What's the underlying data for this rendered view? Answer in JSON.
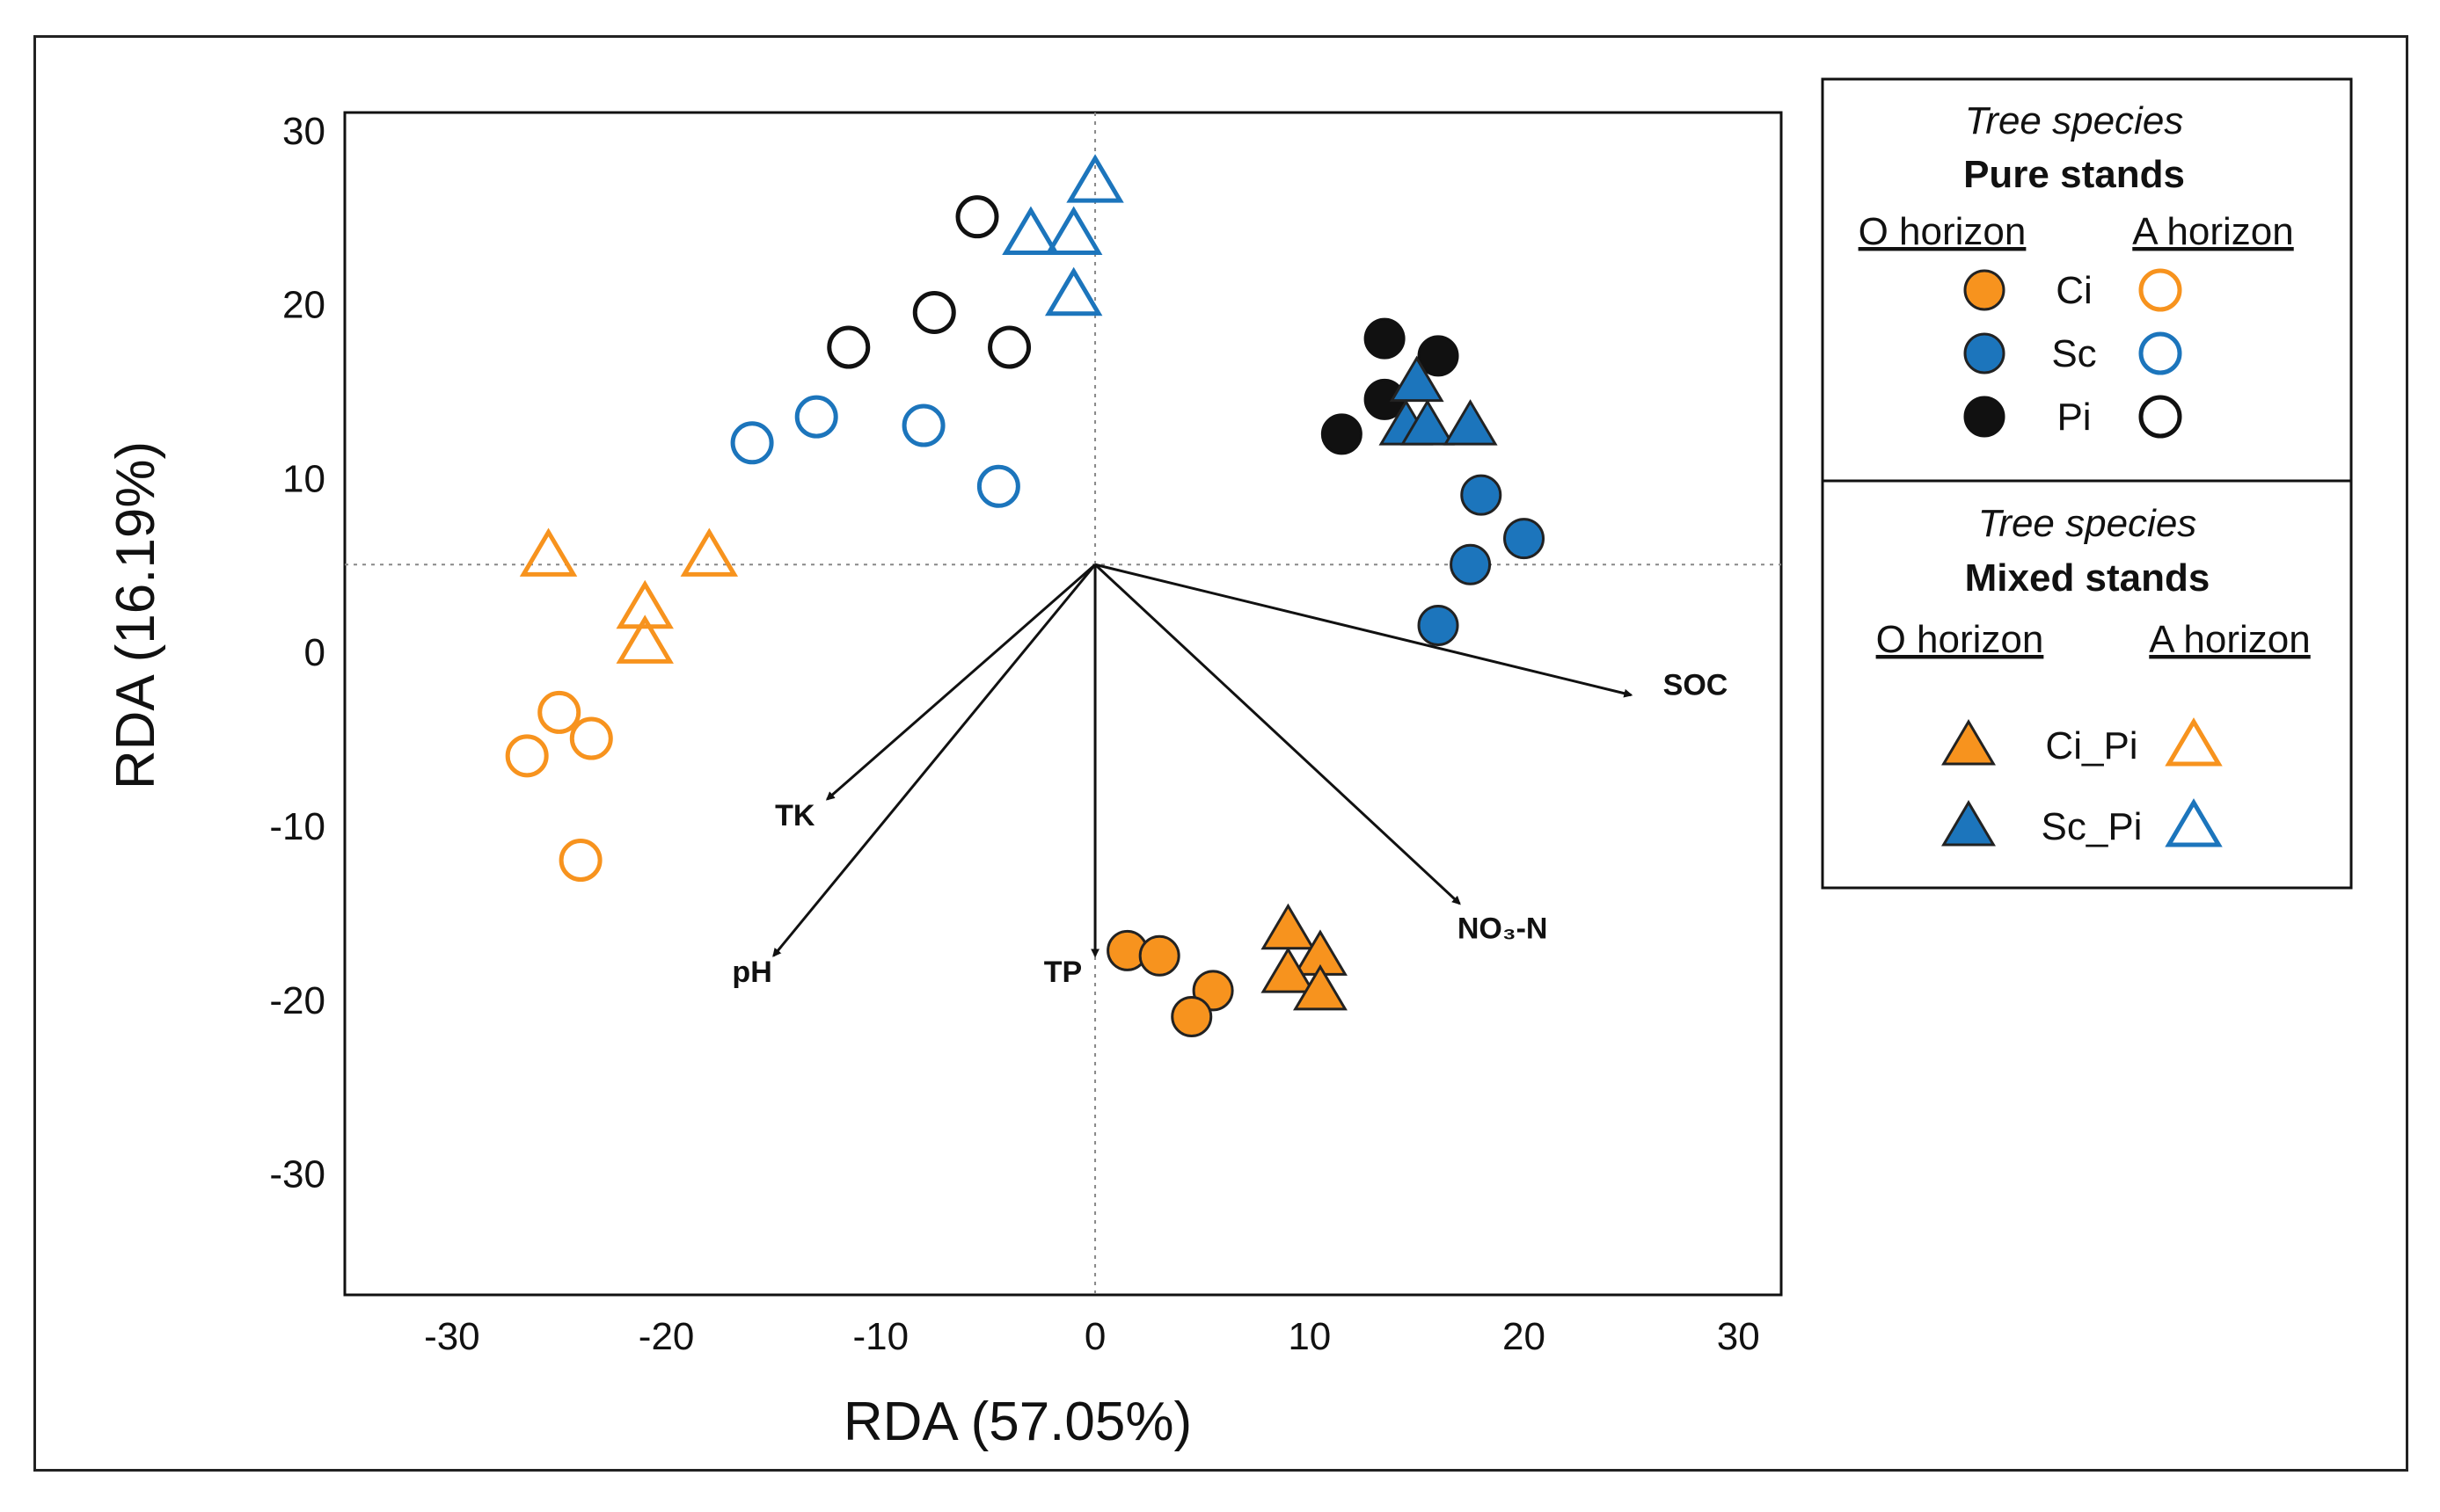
{
  "chart_data": {
    "type": "scatter",
    "xlabel": "RDA (57.05%)",
    "ylabel": "RDA (16.19%)",
    "xlim": [
      -35,
      32
    ],
    "ylim": [
      -37,
      31
    ],
    "x_ticks": [
      -30,
      -20,
      -10,
      0,
      10,
      20,
      30
    ],
    "y_ticks": [
      30,
      20,
      10,
      0,
      -10,
      -20,
      -30
    ],
    "reference_lines": {
      "x": 0,
      "y": 5
    },
    "series": [
      {
        "name": "Ci (O horizon)",
        "stand": "Pure",
        "shape": "circle",
        "fill": "#F7931E",
        "stroke": "#222222",
        "points": [
          [
            1.5,
            -17.2
          ],
          [
            3,
            -17.5
          ],
          [
            5.5,
            -19.5
          ],
          [
            4.5,
            -21
          ]
        ]
      },
      {
        "name": "Ci (A horizon)",
        "stand": "Pure",
        "shape": "circle",
        "fill": "none",
        "stroke": "#F7931E",
        "points": [
          [
            -26.5,
            -6
          ],
          [
            -25,
            -3.5
          ],
          [
            -23.5,
            -5
          ],
          [
            -24,
            -12
          ]
        ]
      },
      {
        "name": "Sc (O horizon)",
        "stand": "Pure",
        "shape": "circle",
        "fill": "#1C75BC",
        "stroke": "#222222",
        "points": [
          [
            18,
            9
          ],
          [
            20,
            6.5
          ],
          [
            17.5,
            5
          ],
          [
            16,
            1.5
          ]
        ]
      },
      {
        "name": "Sc (A horizon)",
        "stand": "Pure",
        "shape": "circle",
        "fill": "none",
        "stroke": "#1C75BC",
        "points": [
          [
            -16,
            12
          ],
          [
            -13,
            13.5
          ],
          [
            -8,
            13
          ],
          [
            -4.5,
            9.5
          ]
        ]
      },
      {
        "name": "Pi (O horizon)",
        "stand": "Pure",
        "shape": "circle",
        "fill": "#111111",
        "stroke": "#111111",
        "points": [
          [
            13.5,
            18
          ],
          [
            16,
            17
          ],
          [
            13.5,
            14.5
          ],
          [
            11.5,
            12.5
          ]
        ]
      },
      {
        "name": "Pi (A horizon)",
        "stand": "Pure",
        "shape": "circle",
        "fill": "none",
        "stroke": "#111111",
        "points": [
          [
            -5.5,
            25
          ],
          [
            -7.5,
            19.5
          ],
          [
            -11.5,
            17.5
          ],
          [
            -4,
            17.5
          ]
        ]
      },
      {
        "name": "Ci_Pi (O horizon)",
        "stand": "Mixed",
        "shape": "triangle",
        "fill": "#F7931E",
        "stroke": "#222222",
        "points": [
          [
            9,
            -16
          ],
          [
            10.5,
            -17.5
          ],
          [
            9,
            -18.5
          ],
          [
            10.5,
            -19.5
          ]
        ]
      },
      {
        "name": "Ci_Pi (A horizon)",
        "stand": "Mixed",
        "shape": "triangle",
        "fill": "none",
        "stroke": "#F7931E",
        "points": [
          [
            -25.5,
            5.5
          ],
          [
            -18,
            5.5
          ],
          [
            -21,
            2.5
          ],
          [
            -21,
            0.5
          ]
        ]
      },
      {
        "name": "Sc_Pi (O horizon)",
        "stand": "Mixed",
        "shape": "triangle",
        "fill": "#1C75BC",
        "stroke": "#222222",
        "points": [
          [
            15,
            15.5
          ],
          [
            14.5,
            13
          ],
          [
            15.5,
            13
          ],
          [
            17.5,
            13
          ]
        ]
      },
      {
        "name": "Sc_Pi (A horizon)",
        "stand": "Mixed",
        "shape": "triangle",
        "fill": "none",
        "stroke": "#1C75BC",
        "points": [
          [
            0,
            27
          ],
          [
            -3,
            24
          ],
          [
            -1,
            24
          ],
          [
            -1,
            20.5
          ]
        ]
      }
    ],
    "vectors": [
      {
        "label": "SOC",
        "end": [
          25,
          -2.5
        ],
        "label_at": [
          28,
          -2.5
        ]
      },
      {
        "label": "TK",
        "end": [
          -12.5,
          -8.5
        ],
        "label_at": [
          -14,
          -10
        ]
      },
      {
        "label": "pH",
        "end": [
          -15,
          -17.5
        ],
        "label_at": [
          -16,
          -19
        ]
      },
      {
        "label": "TP",
        "end": [
          0,
          -17.5
        ],
        "label_at": [
          -1.5,
          -19
        ]
      },
      {
        "label": "NO₃-N",
        "end": [
          17,
          -14.5
        ],
        "label_at": [
          19,
          -16.5
        ]
      }
    ],
    "legend": {
      "pure": {
        "heading": "Tree species",
        "title": "Pure stands",
        "col_o": "O horizon",
        "col_a": "A horizon",
        "entries": [
          {
            "label": "Ci",
            "color": "#F7931E"
          },
          {
            "label": "Sc",
            "color": "#1C75BC"
          },
          {
            "label": "Pi",
            "color": "#111111"
          }
        ]
      },
      "mixed": {
        "heading": "Tree species",
        "title": "Mixed stands",
        "col_o": "O horizon",
        "col_a": "A horizon",
        "entries": [
          {
            "label": "Ci_Pi",
            "color": "#F7931E"
          },
          {
            "label": "Sc_Pi",
            "color": "#1C75BC"
          }
        ]
      },
      "placement": "right"
    }
  }
}
